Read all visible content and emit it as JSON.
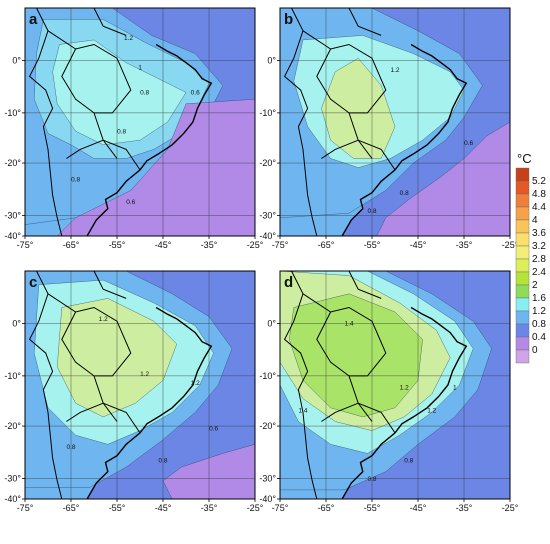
{
  "panels": [
    {
      "letter": "a",
      "contour_labels": [
        "1.2",
        "0.8",
        "0.8",
        "0.6",
        "0.8",
        "0.6",
        "1"
      ]
    },
    {
      "letter": "b",
      "contour_labels": [
        "1.2",
        "0.8",
        "0.6",
        "0.8"
      ]
    },
    {
      "letter": "c",
      "contour_labels": [
        "1.2",
        "1.2",
        "0.8",
        "0.6",
        "0.8",
        "1.2"
      ]
    },
    {
      "letter": "d",
      "contour_labels": [
        "1.4",
        "1.2",
        "1.4",
        "0.8",
        "0.8",
        "1",
        "1.2"
      ]
    }
  ],
  "lon_ticks": [
    "-75°",
    "-65°",
    "-55°",
    "-45°",
    "-35°",
    "-25°"
  ],
  "lat_ticks": [
    "0°",
    "-10°",
    "-20°",
    "-30°",
    "-40°"
  ],
  "legend": {
    "unit": "°C",
    "values": [
      "5.2",
      "4.8",
      "4.4",
      "4",
      "3.6",
      "3.2",
      "2.8",
      "2.4",
      "2",
      "1.6",
      "1.2",
      "0.8",
      "0.4",
      "0"
    ],
    "colors": [
      "#c8401a",
      "#e35a28",
      "#f07f3a",
      "#f5a24a",
      "#f9c55a",
      "#fadf6e",
      "#f2ee7a",
      "#dcee5a",
      "#b4e43c",
      "#8fdc5a",
      "#88eef0",
      "#6fb6f0",
      "#6c86e6",
      "#b58ae6",
      "#d0a4e6"
    ]
  },
  "colors": {
    "ocean": "#6c86e6",
    "c06": "#5b94e8",
    "c08": "#6fb6f0",
    "c10": "#88d8f2",
    "c12": "#a6f2ee",
    "c14": "#cdeea0",
    "c16": "#a9e368",
    "c18": "#95dc3c",
    "low": "#b08ae6"
  }
}
